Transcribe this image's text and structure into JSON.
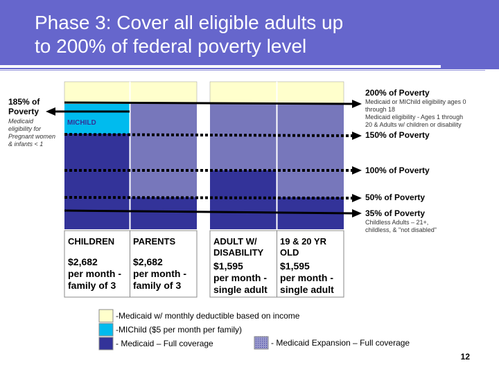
{
  "title": "Phase 3: Cover all eligible adults up\nto 200% of federal poverty level",
  "left_label": {
    "title": "185% of\nPoverty",
    "note": "Medicaid\neligibility for\nPregnant women\n& infants < 1"
  },
  "michild_label": "MICHILD",
  "poverty_levels": [
    {
      "id": "p200",
      "label": "200% of Poverty",
      "note": "Medicaid or MIChild eligibility ages 0\nthrough 18\nMedicaid eligibility - Ages 1 through\n20 & Adults w/ children or disability"
    },
    {
      "id": "p150",
      "label": "150% of Poverty",
      "note": ""
    },
    {
      "id": "p100",
      "label": "100% of Poverty",
      "note": ""
    },
    {
      "id": "p50",
      "label": "50% of Poverty",
      "note": ""
    },
    {
      "id": "p35",
      "label": "35% of Poverty",
      "note": "Childless Adults – 21+,\nchildless, & \"not disabled\""
    }
  ],
  "columns": [
    {
      "header": "CHILDREN",
      "income": "$2,682\nper month -\nfamily of 3"
    },
    {
      "header": "PARENTS",
      "income": "$2,682\nper month  -\nfamily of 3"
    },
    {
      "header": "ADULT W/\nDISABILITY",
      "income": "$1,595\nper month -\nsingle adult"
    },
    {
      "header": "19 & 20 YR\nOLD",
      "income": "$1,595\nper month -\nsingle adult"
    }
  ],
  "legend": [
    {
      "label": "-Medicaid w/  monthly deductible based on income",
      "color": "#ffffcc"
    },
    {
      "label": "-MIChild ($5 per month per family)",
      "color": "#00bbee"
    },
    {
      "label": "- Medicaid – Full coverage",
      "color": "#333399"
    },
    {
      "label": "- Medicaid Expansion – Full coverage",
      "color": "#7777bb"
    }
  ],
  "colors": {
    "title_bg": "#6666cc",
    "deductible": "#ffffcc",
    "michild": "#00bbee",
    "medicaid": "#333399",
    "expansion": "#7777bb"
  },
  "page_number": "12"
}
